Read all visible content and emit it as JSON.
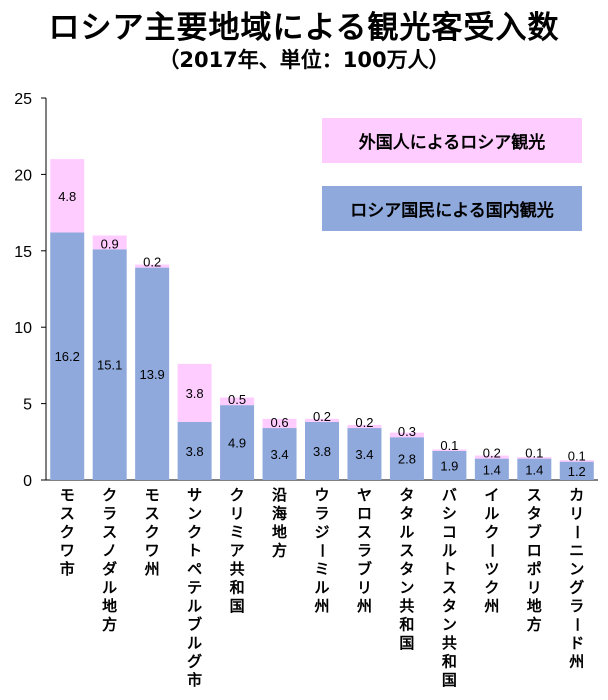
{
  "title": "ロシア主要地域による観光客受入数",
  "subtitle": "（2017年、単位：100万人）",
  "chart_data": {
    "type": "bar",
    "stacked": true,
    "categories": [
      "モスクワ市",
      "クラスノダル地方",
      "モスクワ州",
      "サンクトペテルブルグ市",
      "クリミア共和国",
      "沿海地方",
      "ウラジーミル州",
      "ヤロスラブリ州",
      "タタルスタン共和国",
      "バシコルトスタン共和国",
      "イルクーツク州",
      "スタブロポリ地方",
      "カリーニングラード州"
    ],
    "series": [
      {
        "name": "ロシア国民による国内観光",
        "color": "#8fa9dc",
        "values": [
          16.2,
          15.1,
          13.9,
          3.8,
          4.9,
          3.4,
          3.8,
          3.4,
          2.8,
          1.9,
          1.4,
          1.4,
          1.2
        ]
      },
      {
        "name": "外国人によるロシア観光",
        "color": "#ffccff",
        "values": [
          4.8,
          0.9,
          0.2,
          3.8,
          0.5,
          0.6,
          0.2,
          0.2,
          0.3,
          0.1,
          0.2,
          0.1,
          0.1
        ]
      }
    ],
    "ylim": [
      0,
      25
    ],
    "yticks": [
      0,
      5,
      10,
      15,
      20,
      25
    ],
    "grid": false,
    "legend_position": "top-right"
  }
}
